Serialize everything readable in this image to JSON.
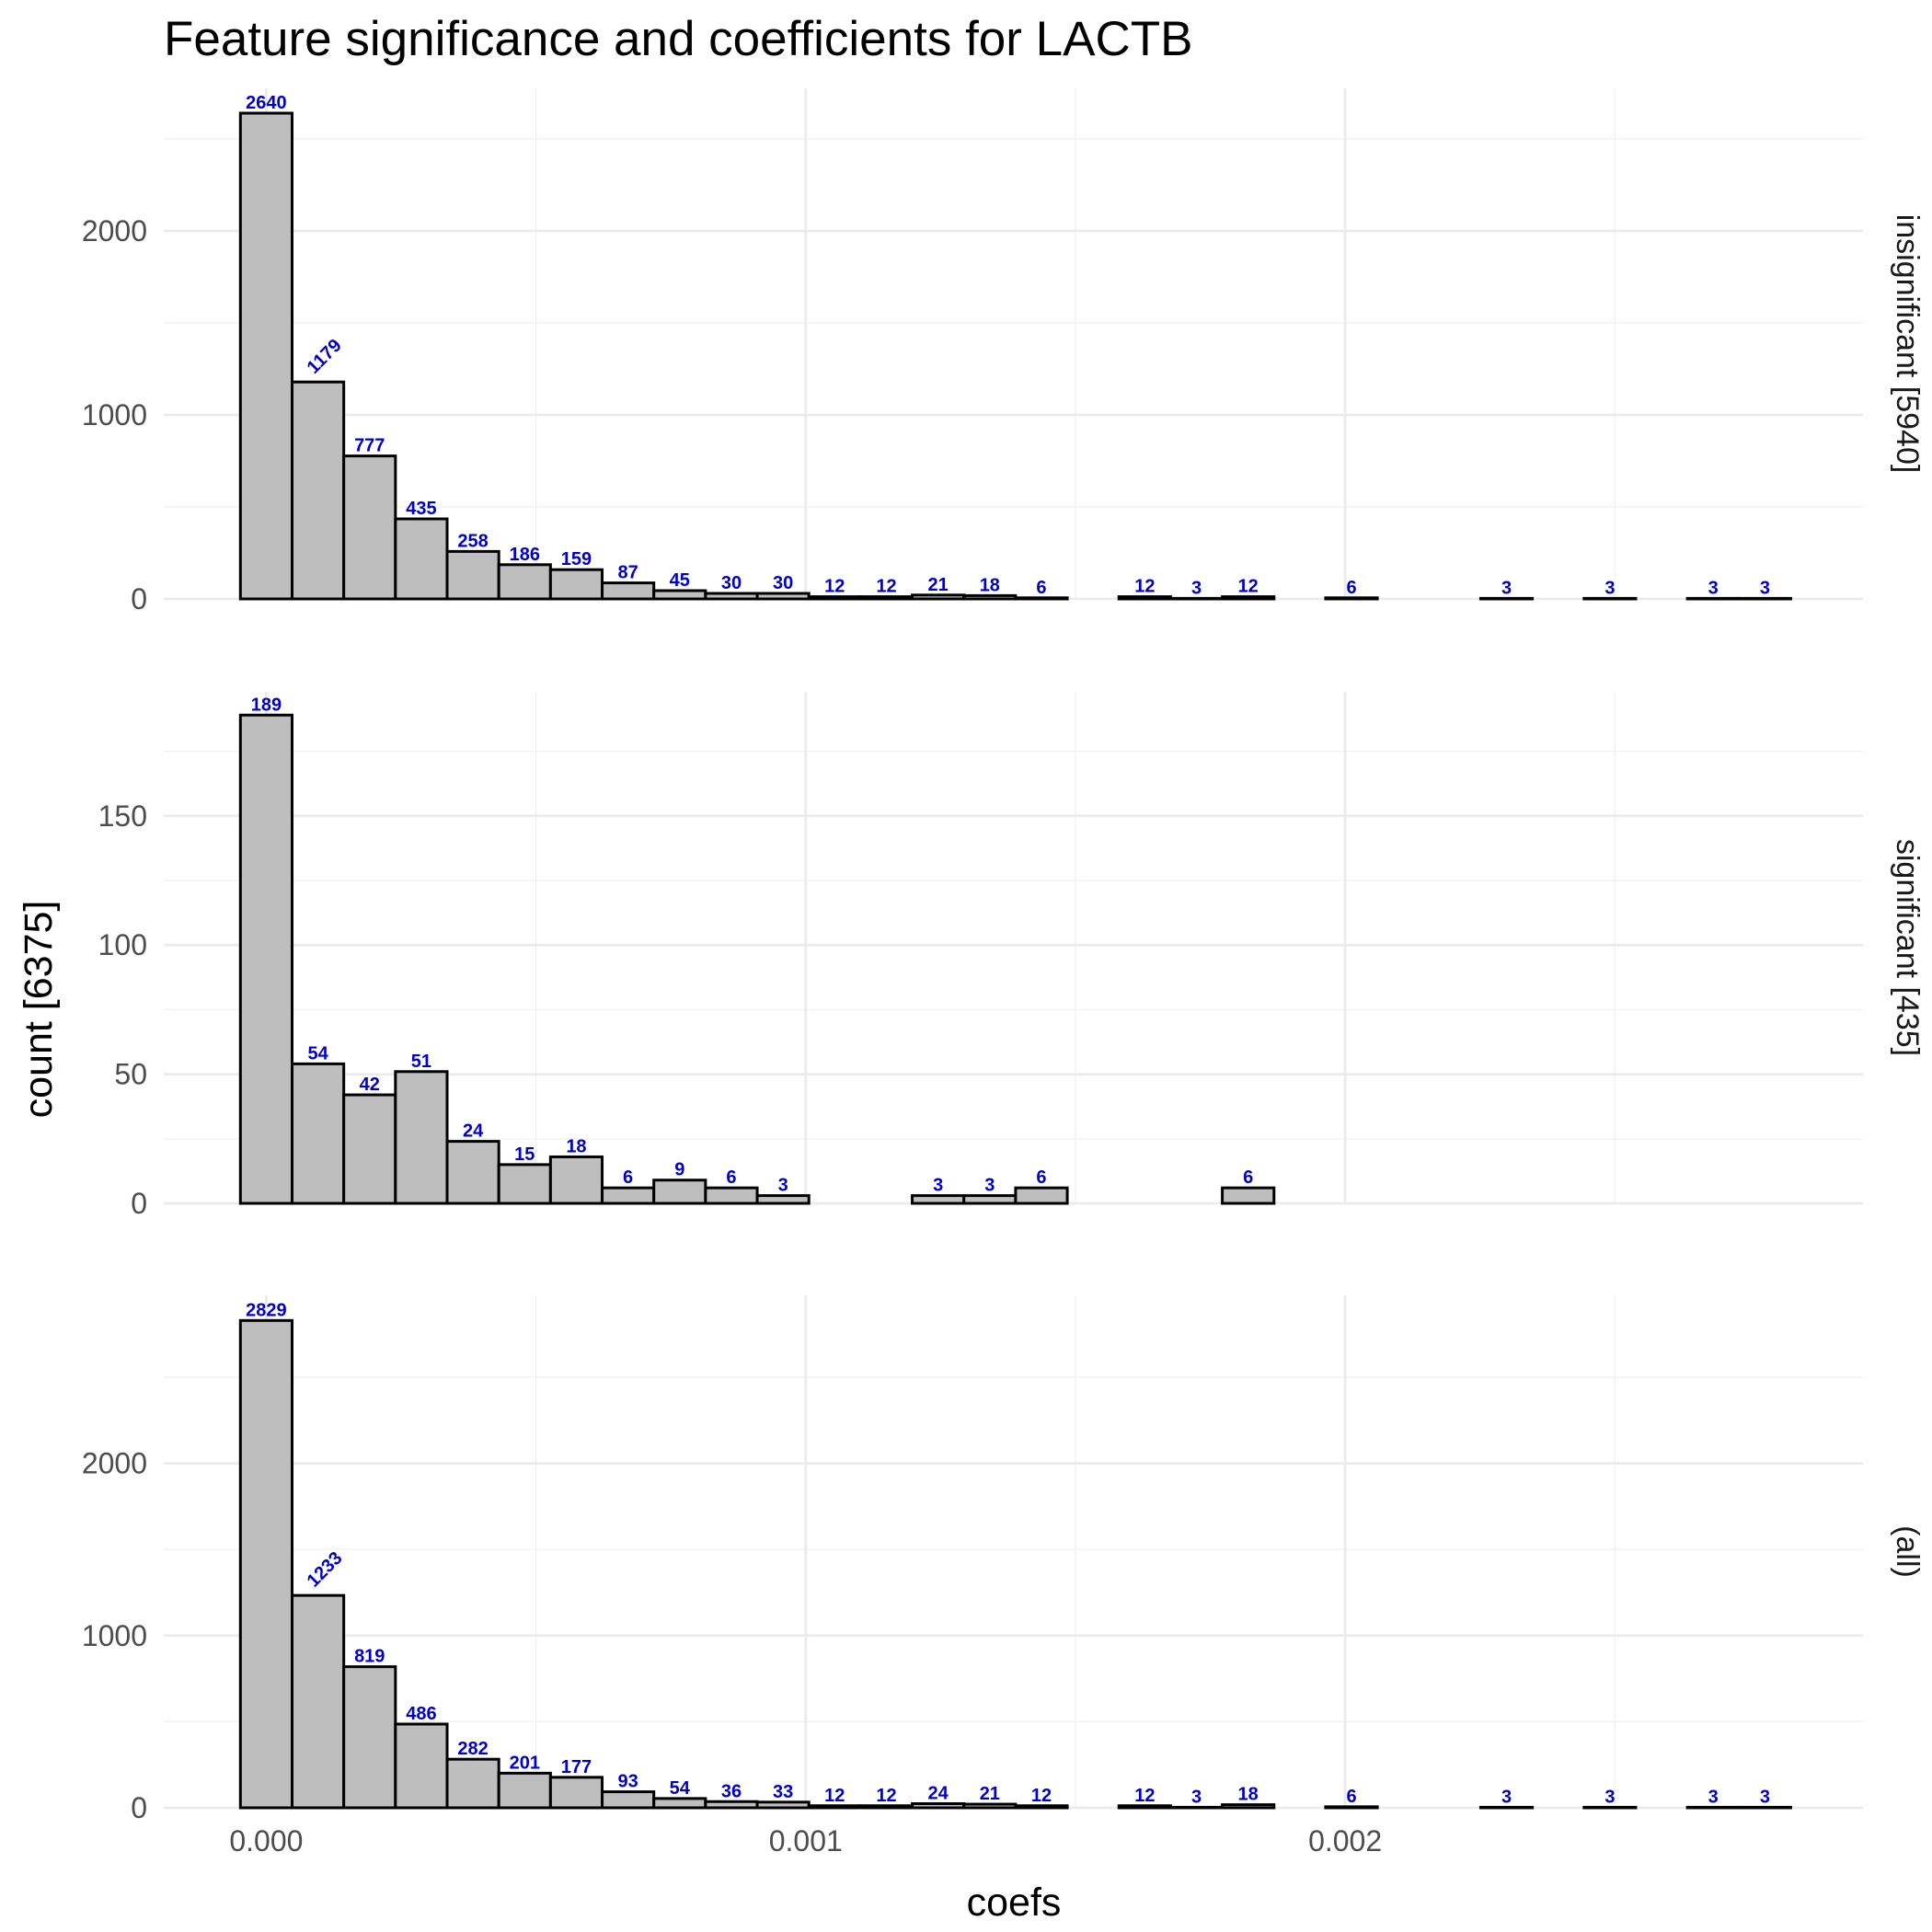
{
  "chart_data": {
    "type": "bar",
    "title": "Feature significance and coefficients for LACTB",
    "xlabel": "coefs",
    "ylabel": "count [6375]",
    "x_ticks": [
      0.0,
      0.001,
      0.002
    ],
    "x_tick_labels": [
      "0.000",
      "0.001",
      "0.002"
    ],
    "xlim": [
      -0.00019,
      0.00296
    ],
    "bin_width": 9.58e-05,
    "bin_start": 0.0,
    "grid": true,
    "colors": {
      "bar_fill": "#bebebe",
      "bar_stroke": "#000000",
      "label": "#0000cc"
    },
    "panels": [
      {
        "name": "insignificant [5940]",
        "ylim": [
          0,
          2775
        ],
        "y_ticks": [
          0,
          1000,
          2000
        ],
        "y_tick_labels": [
          "0",
          "1000",
          "2000"
        ],
        "values": [
          2640,
          1179,
          777,
          435,
          258,
          186,
          159,
          87,
          45,
          30,
          30,
          12,
          12,
          21,
          18,
          6,
          0,
          12,
          3,
          12,
          0,
          6,
          0,
          0,
          3,
          0,
          3,
          0,
          3,
          3
        ],
        "rotated_labels": [
          1
        ]
      },
      {
        "name": "significant [435]",
        "ylim": [
          0,
          198
        ],
        "y_ticks": [
          0,
          50,
          100,
          150
        ],
        "y_tick_labels": [
          "0",
          "50",
          "100",
          "150"
        ],
        "values": [
          189,
          54,
          42,
          51,
          24,
          15,
          18,
          6,
          9,
          6,
          3,
          0,
          0,
          3,
          3,
          6,
          0,
          0,
          0,
          6,
          0,
          0,
          0,
          0,
          0,
          0,
          0,
          0,
          0,
          0
        ],
        "rotated_labels": []
      },
      {
        "name": "(all)",
        "ylim": [
          0,
          2975
        ],
        "y_ticks": [
          0,
          1000,
          2000
        ],
        "y_tick_labels": [
          "0",
          "1000",
          "2000"
        ],
        "values": [
          2829,
          1233,
          819,
          486,
          282,
          201,
          177,
          93,
          54,
          36,
          33,
          12,
          12,
          24,
          21,
          12,
          0,
          12,
          3,
          18,
          0,
          6,
          0,
          0,
          3,
          0,
          3,
          0,
          3,
          3
        ],
        "rotated_labels": [
          1
        ]
      }
    ]
  }
}
